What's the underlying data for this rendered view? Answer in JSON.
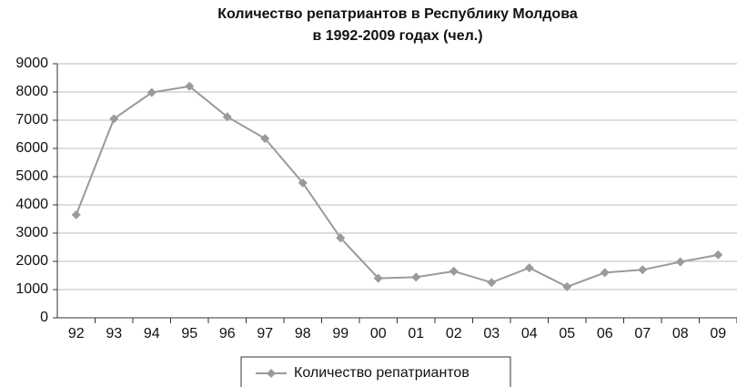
{
  "chart_data": {
    "type": "line",
    "title": [
      "Количество репатриантов в Республику Молдова",
      "в 1992-2009 годах (чел.)"
    ],
    "categories": [
      "92",
      "93",
      "94",
      "95",
      "96",
      "97",
      "98",
      "99",
      "00",
      "01",
      "02",
      "03",
      "04",
      "05",
      "06",
      "07",
      "08",
      "09"
    ],
    "series": [
      {
        "name": "Количество репатриантов",
        "color": "#9a9a9a",
        "values": [
          3650,
          7050,
          7980,
          8200,
          7120,
          6350,
          4780,
          2830,
          1400,
          1440,
          1650,
          1250,
          1770,
          1100,
          1600,
          1700,
          1980,
          2230
        ]
      }
    ],
    "ylim": [
      0,
      9000
    ],
    "yticks": [
      0,
      1000,
      2000,
      3000,
      4000,
      5000,
      6000,
      7000,
      8000,
      9000
    ],
    "grid": true,
    "legend": "bottom"
  }
}
